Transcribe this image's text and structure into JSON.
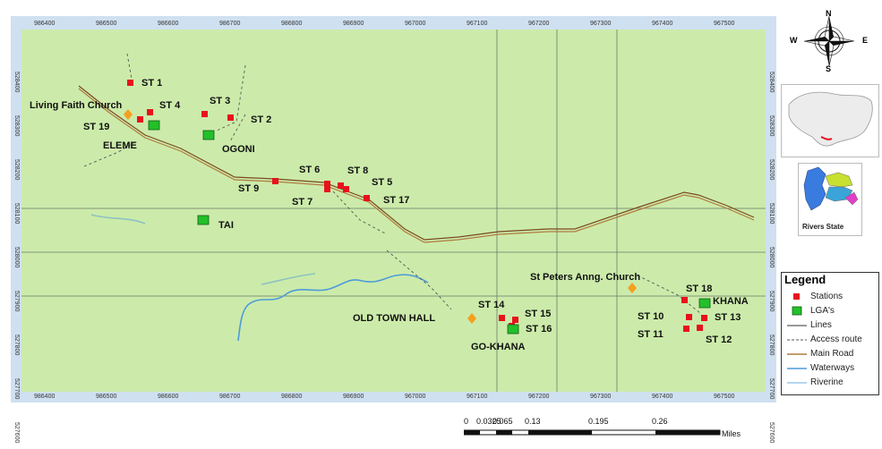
{
  "map": {
    "x_ticks": [
      "986400",
      "986500",
      "986600",
      "986700",
      "986800",
      "986900",
      "967000",
      "967100",
      "967200",
      "967300",
      "967400",
      "967500"
    ],
    "y_ticks": [
      "528400",
      "528300",
      "528200",
      "528100",
      "528000",
      "527900",
      "527800",
      "527700",
      "527600"
    ],
    "labels": {
      "st1": "ST 1",
      "st2": "ST 2",
      "st3": "ST 3",
      "st4": "ST 4",
      "st5": "ST 5",
      "st6": "ST 6",
      "st7": "ST 7",
      "st8": "ST 8",
      "st9": "ST 9",
      "st10": "ST 10",
      "st11": "ST 11",
      "st12": "ST 12",
      "st13": "ST 13",
      "st14": "ST 14",
      "st15": "ST 15",
      "st16": "ST 16",
      "st17": "ST 17",
      "st18": "ST 18",
      "st19": "ST 19",
      "living_faith": "Living Faith Church",
      "eleme": "ELEME",
      "ogoni": "OGONI",
      "tai": "TAI",
      "gokhana": "GO-KHANA",
      "khana": "KHANA",
      "old_town_hall": "OLD TOWN HALL",
      "st_peters": "St Peters Anng. Church"
    }
  },
  "compass": {
    "n": "N",
    "s": "S",
    "e": "E",
    "w": "W"
  },
  "inset": {
    "state_label": "Rivers State"
  },
  "legend": {
    "title": "Legend",
    "items": [
      "Stations",
      "LGA's",
      "Lines",
      "Access route",
      "Main Road",
      "Waterways",
      "Riverine"
    ]
  },
  "scalebar": {
    "ticks": [
      "0",
      "0.0325",
      "0.065",
      "0.13",
      "0.195",
      "0.26"
    ],
    "unit": "Miles"
  },
  "colors": {
    "land": "#ccebaa",
    "station": "#e8121c",
    "lga": "#22c02a",
    "church": "#f5a01e",
    "road": "#8a5a2a",
    "water": "#4d9bd8"
  }
}
